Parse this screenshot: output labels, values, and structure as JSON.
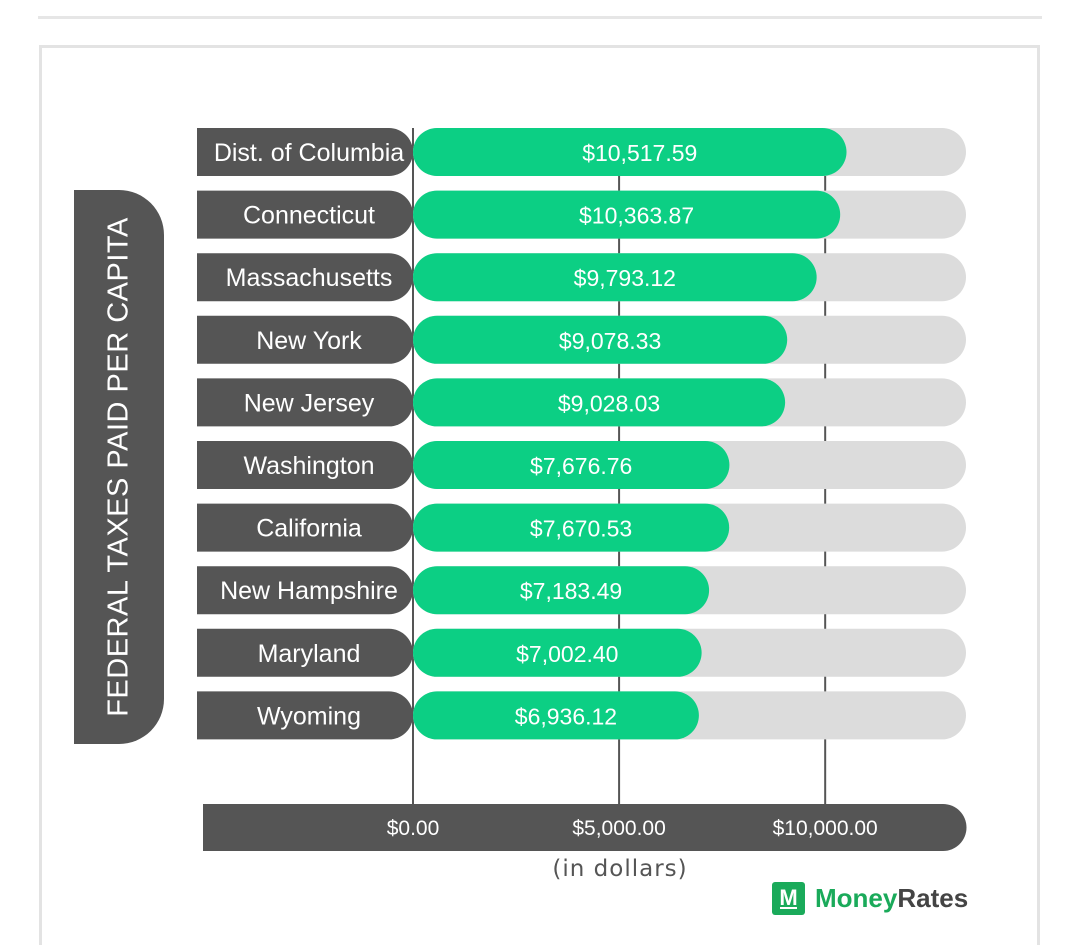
{
  "brand": {
    "name_part1": "Money",
    "name_part2": "Rates",
    "icon_letter": "M",
    "accent": "#1aaa5a"
  },
  "colors": {
    "bar": "#0ccf84",
    "track": "#dcdcdc",
    "label_bg": "#555555",
    "grid": "#555555"
  },
  "chart_data": {
    "type": "bar",
    "orientation": "horizontal",
    "ylabel": "FEDERAL TAXES PAID PER CAPITA",
    "xlabel": "(in dollars)",
    "xlim": [
      0,
      13000
    ],
    "xticks": [
      0,
      5000,
      10000
    ],
    "xtick_labels": [
      "$0.00",
      "$5,000.00",
      "$10,000.00"
    ],
    "categories": [
      "Dist. of Columbia",
      "Connecticut",
      "Massachusetts",
      "New York",
      "New Jersey",
      "Washington",
      "California",
      "New Hampshire",
      "Maryland",
      "Wyoming"
    ],
    "values": [
      10517.59,
      10363.87,
      9793.12,
      9078.33,
      9028.03,
      7676.76,
      7670.53,
      7183.49,
      7002.4,
      6936.12
    ],
    "value_labels": [
      "$10,517.59",
      "$10,363.87",
      "$9,793.12",
      "$9,078.33",
      "$9,028.03",
      "$7,676.76",
      "$7,670.53",
      "$7,183.49",
      "$7,002.40",
      "$6,936.12"
    ],
    "grid": true
  }
}
